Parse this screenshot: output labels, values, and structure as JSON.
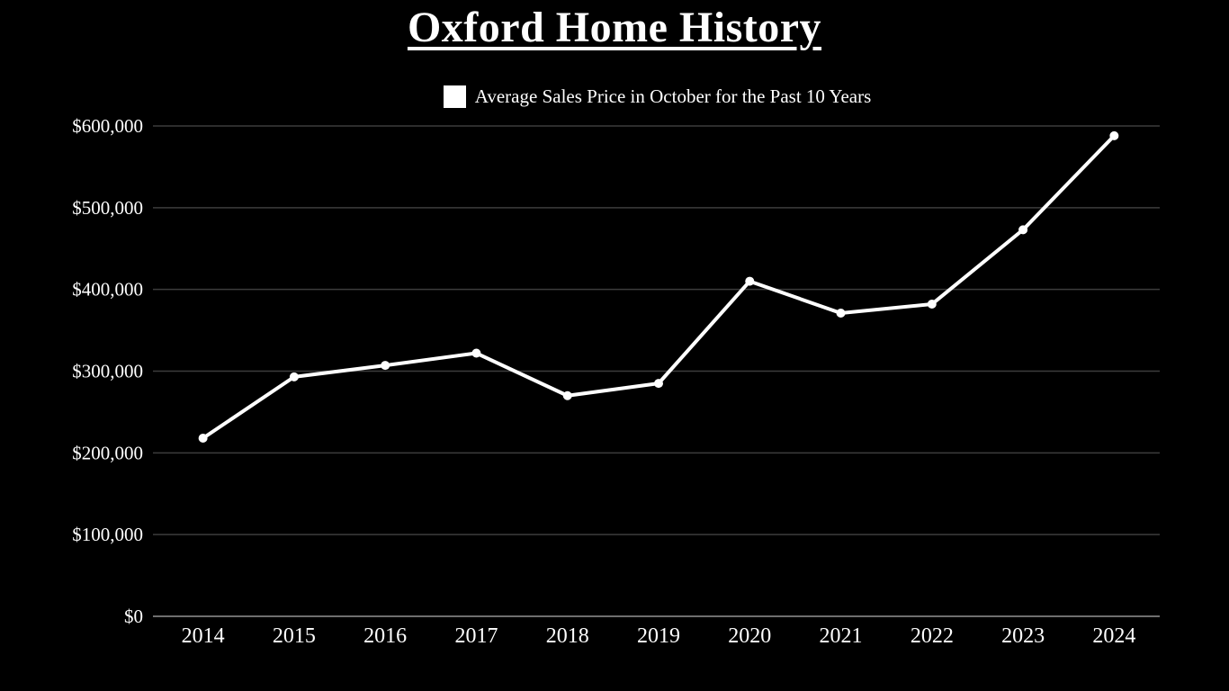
{
  "title": "Oxford Home History",
  "legend": {
    "label": "Average Sales Price in October for the Past 10 Years",
    "swatch_color": "#ffffff"
  },
  "colors": {
    "background": "#000000",
    "text": "#ffffff",
    "line": "#ffffff",
    "marker": "#ffffff",
    "gridline": "#3c3c3c",
    "axis_line": "#6e6e6e"
  },
  "chart_data": {
    "type": "line",
    "title": "Oxford Home History",
    "categories": [
      "2014",
      "2015",
      "2016",
      "2017",
      "2018",
      "2019",
      "2020",
      "2021",
      "2022",
      "2023",
      "2024"
    ],
    "series": [
      {
        "name": "Average Sales Price in October for the Past 10 Years",
        "values": [
          218000,
          293000,
          307000,
          322000,
          270000,
          285000,
          410000,
          371000,
          382000,
          473000,
          588000
        ]
      }
    ],
    "xlabel": "",
    "ylabel": "",
    "ylim": [
      0,
      600000
    ],
    "yticks": [
      {
        "value": 0,
        "label": "$0"
      },
      {
        "value": 100000,
        "label": "$100,000"
      },
      {
        "value": 200000,
        "label": "$200,000"
      },
      {
        "value": 300000,
        "label": "$300,000"
      },
      {
        "value": 400000,
        "label": "$400,000"
      },
      {
        "value": 500000,
        "label": "$500,000"
      },
      {
        "value": 600000,
        "label": "$600,000"
      }
    ],
    "grid": true,
    "legend_position": "top"
  }
}
